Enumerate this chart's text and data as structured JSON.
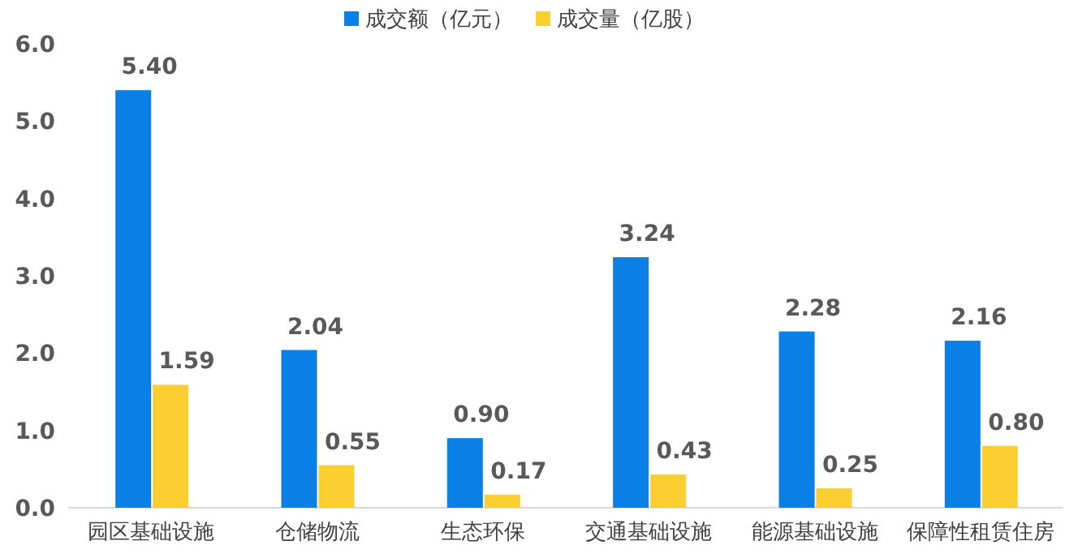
{
  "chart_data": {
    "type": "bar",
    "categories": [
      "园区基础设施",
      "仓储物流",
      "生态环保",
      "交通基础设施",
      "能源基础设施",
      "保障性租赁住房"
    ],
    "series": [
      {
        "name": "成交额（亿元）",
        "color": "#0a7fe6",
        "values": [
          5.4,
          2.04,
          0.9,
          3.24,
          2.28,
          2.16
        ],
        "value_labels": [
          "5.40",
          "2.04",
          "0.90",
          "3.24",
          "2.28",
          "2.16"
        ]
      },
      {
        "name": "成交量（亿股）",
        "color": "#fccf31",
        "values": [
          1.59,
          0.55,
          0.17,
          0.43,
          0.25,
          0.8
        ],
        "value_labels": [
          "1.59",
          "0.55",
          "0.17",
          "0.43",
          "0.25",
          "0.80"
        ]
      }
    ],
    "ylim": [
      0,
      6
    ],
    "yticks": [
      {
        "value": 0,
        "label": "0.0"
      },
      {
        "value": 1,
        "label": "1.0"
      },
      {
        "value": 2,
        "label": "2.0"
      },
      {
        "value": 3,
        "label": "3.0"
      },
      {
        "value": 4,
        "label": "4.0"
      },
      {
        "value": 5,
        "label": "5.0"
      },
      {
        "value": 6,
        "label": "6.0"
      }
    ],
    "legend": "top"
  }
}
